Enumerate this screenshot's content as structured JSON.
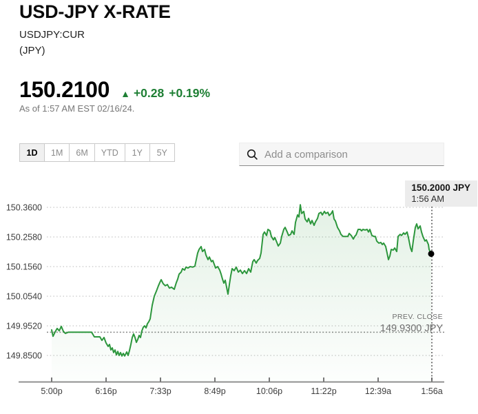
{
  "header": {
    "title": "USD-JPY X-RATE",
    "ticker": "USDJPY:CUR",
    "unit": "(JPY)",
    "price": "150.2100",
    "up_arrow": "▲",
    "change": "+0.28",
    "change_pct": "+0.19%",
    "as_of": "As of 1:57 AM EST 02/16/24."
  },
  "colors": {
    "green_text": "#1E7F34",
    "line_green": "#2C963C",
    "tooltip_bg": "#ececec",
    "axis_text": "#3c3c3c",
    "muted_text": "#767676"
  },
  "range_tabs": [
    {
      "label": "1D",
      "active": true
    },
    {
      "label": "1M",
      "active": false
    },
    {
      "label": "6M",
      "active": false
    },
    {
      "label": "YTD",
      "active": false
    },
    {
      "label": "1Y",
      "active": false
    },
    {
      "label": "5Y",
      "active": false
    }
  ],
  "comparison": {
    "placeholder": "Add a comparison",
    "icon": "search-icon"
  },
  "tooltip": {
    "price_line": "150.2000 JPY",
    "time_line": "1:56 AM"
  },
  "prev_close_annotation": {
    "label": "PREV. CLOSE",
    "value_line": "149.9300 JPY"
  },
  "chart_data": {
    "type": "line",
    "title": "USDJPY:CUR 1D intraday price",
    "xlabel": "",
    "ylabel": "JPY",
    "grid": "dotted horizontal gridlines",
    "legend_position": "none",
    "ylim": [
      149.8,
      150.41
    ],
    "y_ticks": [
      {
        "label": "150.3600",
        "value": 150.36
      },
      {
        "label": "150.2580",
        "value": 150.258
      },
      {
        "label": "150.1560",
        "value": 150.156
      },
      {
        "label": "150.0540",
        "value": 150.054
      },
      {
        "label": "149.9520",
        "value": 149.952
      },
      {
        "label": "149.8500",
        "value": 149.85
      }
    ],
    "x_ticks": [
      "5:00p",
      "6:16p",
      "7:33p",
      "8:49p",
      "10:06p",
      "11:22p",
      "12:39a",
      "1:56a"
    ],
    "prev_close": 149.93,
    "last_point": {
      "value": 150.2,
      "time": "1:56 AM"
    },
    "series": [
      {
        "name": "USDJPY:CUR",
        "points": [
          [
            75,
            149.938
          ],
          [
            77,
            149.916
          ],
          [
            80,
            149.931
          ],
          [
            83,
            149.943
          ],
          [
            86,
            149.935
          ],
          [
            89,
            149.95
          ],
          [
            92,
            149.933
          ],
          [
            95,
            149.926
          ],
          [
            99,
            149.93
          ],
          [
            133,
            149.93
          ],
          [
            137,
            149.914
          ],
          [
            145,
            149.914
          ],
          [
            148,
            149.902
          ],
          [
            151,
            149.912
          ],
          [
            154,
            149.893
          ],
          [
            157,
            149.881
          ],
          [
            159,
            149.888
          ],
          [
            161,
            149.869
          ],
          [
            163,
            149.876
          ],
          [
            165,
            149.86
          ],
          [
            167,
            149.869
          ],
          [
            169,
            149.852
          ],
          [
            171,
            149.864
          ],
          [
            173,
            149.85
          ],
          [
            175,
            149.86
          ],
          [
            177,
            149.848
          ],
          [
            179,
            149.857
          ],
          [
            181,
            149.848
          ],
          [
            184,
            149.862
          ],
          [
            186,
            149.85
          ],
          [
            188,
            149.867
          ],
          [
            190,
            149.888
          ],
          [
            192,
            149.912
          ],
          [
            194,
            149.924
          ],
          [
            196,
            149.912
          ],
          [
            198,
            149.895
          ],
          [
            200,
            149.905
          ],
          [
            202,
            149.919
          ],
          [
            204,
            149.912
          ],
          [
            206,
            149.935
          ],
          [
            208,
            149.947
          ],
          [
            210,
            149.952
          ],
          [
            212,
            149.945
          ],
          [
            214,
            149.959
          ],
          [
            216,
            149.966
          ],
          [
            218,
            149.976
          ],
          [
            221,
            150.023
          ],
          [
            224,
            150.054
          ],
          [
            227,
            150.071
          ],
          [
            230,
            150.09
          ],
          [
            232,
            150.101
          ],
          [
            234,
            150.111
          ],
          [
            237,
            150.097
          ],
          [
            240,
            150.09
          ],
          [
            243,
            150.094
          ],
          [
            246,
            150.082
          ],
          [
            249,
            150.085
          ],
          [
            253,
            150.078
          ],
          [
            256,
            150.101
          ],
          [
            258,
            150.113
          ],
          [
            260,
            150.13
          ],
          [
            263,
            150.137
          ],
          [
            265,
            150.149
          ],
          [
            268,
            150.144
          ],
          [
            270,
            150.154
          ],
          [
            273,
            150.151
          ],
          [
            276,
            150.156
          ],
          [
            280,
            150.154
          ],
          [
            283,
            150.158
          ],
          [
            287,
            150.203
          ],
          [
            289,
            150.215
          ],
          [
            292,
            150.225
          ],
          [
            294,
            150.208
          ],
          [
            297,
            150.215
          ],
          [
            299,
            150.196
          ],
          [
            302,
            150.18
          ],
          [
            304,
            150.189
          ],
          [
            307,
            150.173
          ],
          [
            309,
            150.177
          ],
          [
            313,
            150.151
          ],
          [
            316,
            150.156
          ],
          [
            319,
            150.144
          ],
          [
            321,
            150.13
          ],
          [
            323,
            150.113
          ],
          [
            325,
            150.099
          ],
          [
            327,
            150.109
          ],
          [
            329,
            150.085
          ],
          [
            331,
            150.061
          ],
          [
            333,
            150.094
          ],
          [
            335,
            150.125
          ],
          [
            337,
            150.149
          ],
          [
            340,
            150.142
          ],
          [
            343,
            150.154
          ],
          [
            346,
            150.137
          ],
          [
            349,
            150.144
          ],
          [
            352,
            150.132
          ],
          [
            355,
            150.142
          ],
          [
            358,
            150.132
          ],
          [
            361,
            150.149
          ],
          [
            364,
            150.137
          ],
          [
            367,
            150.173
          ],
          [
            369,
            150.18
          ],
          [
            372,
            150.168
          ],
          [
            374,
            150.177
          ],
          [
            377,
            150.184
          ],
          [
            379,
            150.203
          ],
          [
            382,
            150.267
          ],
          [
            384,
            150.275
          ],
          [
            387,
            150.263
          ],
          [
            389,
            150.284
          ],
          [
            392,
            150.279
          ],
          [
            394,
            150.26
          ],
          [
            397,
            150.248
          ],
          [
            399,
            150.256
          ],
          [
            402,
            150.239
          ],
          [
            404,
            150.227
          ],
          [
            407,
            150.237
          ],
          [
            409,
            150.26
          ],
          [
            412,
            150.284
          ],
          [
            414,
            150.291
          ],
          [
            417,
            150.275
          ],
          [
            419,
            150.263
          ],
          [
            422,
            150.267
          ],
          [
            424,
            150.279
          ],
          [
            427,
            150.267
          ],
          [
            429,
            150.308
          ],
          [
            432,
            150.334
          ],
          [
            434,
            150.327
          ],
          [
            436,
            150.369
          ],
          [
            438,
            150.339
          ],
          [
            441,
            150.346
          ],
          [
            443,
            150.32
          ],
          [
            446,
            150.31
          ],
          [
            448,
            150.322
          ],
          [
            451,
            150.303
          ],
          [
            453,
            150.315
          ],
          [
            456,
            150.298
          ],
          [
            458,
            150.31
          ],
          [
            461,
            150.322
          ],
          [
            463,
            150.339
          ],
          [
            466,
            150.343
          ],
          [
            468,
            150.334
          ],
          [
            471,
            150.346
          ],
          [
            473,
            150.339
          ],
          [
            476,
            150.343
          ],
          [
            478,
            150.332
          ],
          [
            481,
            150.339
          ],
          [
            483,
            150.348
          ],
          [
            485,
            150.32
          ],
          [
            487,
            150.313
          ],
          [
            490,
            150.291
          ],
          [
            493,
            150.279
          ],
          [
            495,
            150.267
          ],
          [
            498,
            150.26
          ],
          [
            502,
            150.26
          ],
          [
            505,
            150.26
          ],
          [
            507,
            150.27
          ],
          [
            510,
            150.263
          ],
          [
            513,
            150.251
          ],
          [
            515,
            150.26
          ],
          [
            517,
            150.265
          ],
          [
            520,
            150.284
          ],
          [
            523,
            150.284
          ],
          [
            525,
            150.279
          ],
          [
            527,
            150.284
          ],
          [
            530,
            150.282
          ],
          [
            533,
            150.284
          ],
          [
            535,
            150.275
          ],
          [
            537,
            150.284
          ],
          [
            540,
            150.263
          ],
          [
            543,
            150.26
          ],
          [
            545,
            150.26
          ],
          [
            547,
            150.244
          ],
          [
            550,
            150.237
          ],
          [
            553,
            150.239
          ],
          [
            555,
            150.232
          ],
          [
            557,
            150.237
          ],
          [
            560,
            150.225
          ],
          [
            562,
            150.203
          ],
          [
            564,
            150.18
          ],
          [
            566,
            150.192
          ],
          [
            568,
            150.215
          ],
          [
            571,
            150.213
          ],
          [
            573,
            150.22
          ],
          [
            576,
            150.208
          ],
          [
            578,
            150.26
          ],
          [
            581,
            150.267
          ],
          [
            583,
            150.263
          ],
          [
            586,
            150.272
          ],
          [
            588,
            150.267
          ],
          [
            591,
            150.275
          ],
          [
            593,
            150.256
          ],
          [
            596,
            150.22
          ],
          [
            598,
            150.208
          ],
          [
            600,
            150.244
          ],
          [
            603,
            150.291
          ],
          [
            605,
            150.303
          ],
          [
            607,
            150.286
          ],
          [
            610,
            150.296
          ],
          [
            612,
            150.275
          ],
          [
            614,
            150.26
          ],
          [
            617,
            150.244
          ],
          [
            619,
            150.248
          ],
          [
            622,
            150.232
          ],
          [
            623,
            150.215
          ],
          [
            626,
            150.2
          ]
        ]
      }
    ]
  }
}
